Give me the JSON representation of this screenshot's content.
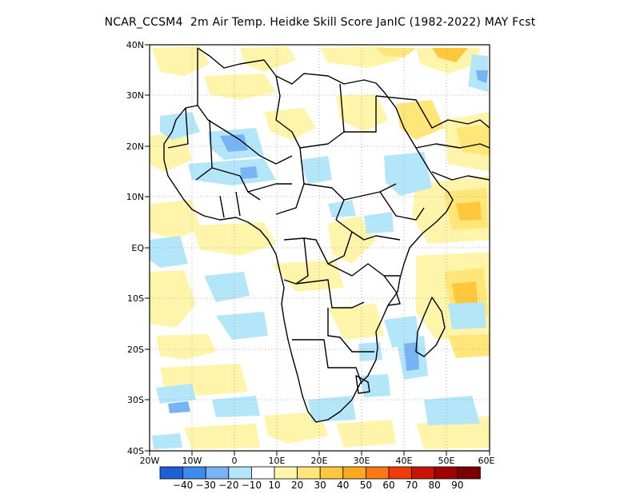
{
  "title": "NCAR_CCSM4  2m Air Temp. Heidke Skill Score JanIC (1982-2022) MAY Fcst",
  "map": {
    "lon_labels": [
      "20W",
      "10W",
      "0",
      "10E",
      "20E",
      "30E",
      "40E",
      "50E",
      "60E"
    ],
    "lat_labels": [
      "40N",
      "30N",
      "20N",
      "10N",
      "EQ",
      "10S",
      "20S",
      "30S",
      "40S"
    ],
    "lon_range": [
      -20,
      60
    ],
    "lat_range": [
      -40,
      40
    ],
    "grid": "dotted every 10 degrees"
  },
  "colorbar": {
    "labels": [
      "-40",
      "-30",
      "-20",
      "-10",
      "10",
      "20",
      "30",
      "40",
      "50",
      "60",
      "70",
      "80",
      "90"
    ],
    "colors": [
      "#1e5fd8",
      "#3c8cf0",
      "#78b4f5",
      "#b4e6fa",
      "#ffffff",
      "#fff5aa",
      "#ffe678",
      "#ffc83c",
      "#ffaa1e",
      "#ff7814",
      "#f03c0a",
      "#c81400",
      "#a00000",
      "#780000"
    ]
  }
}
